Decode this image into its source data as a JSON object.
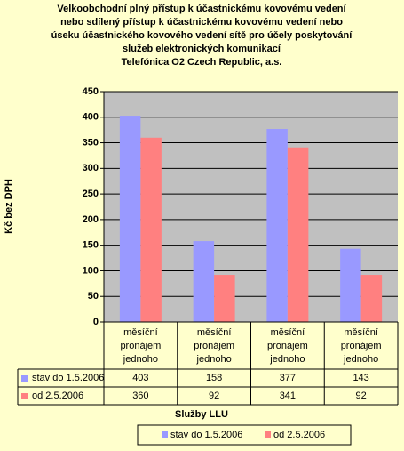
{
  "chart_data": {
    "type": "bar",
    "title": [
      "Velkoobchodní plný přístup k účastnickému kovovému vedení",
      "nebo sdílený přístup k účastnickému kovovému vedení nebo",
      "úseku účastnického kovového vedení sítě pro účely poskytování",
      "služeb elektronických komunikací",
      "Telefónica O2 Czech Republic, a.s."
    ],
    "y_label": "Kč bez DPH",
    "x_label": "Služby LLU",
    "categories": [
      "měsíční pronájem jednoho",
      "měsíční pronájem jednoho",
      "měsíční pronájem jednoho",
      "měsíční pronájem jednoho"
    ],
    "series": [
      {
        "name": "stav do 1.5.2006",
        "color": "#9999ff",
        "values": [
          403,
          158,
          377,
          143
        ]
      },
      {
        "name": "od 2.5.2006",
        "color": "#ff8080",
        "values": [
          360,
          92,
          341,
          92
        ]
      }
    ],
    "ylim": [
      0,
      450
    ],
    "yticks": [
      0,
      50,
      100,
      150,
      200,
      250,
      300,
      350,
      400,
      450
    ],
    "grid": true
  }
}
